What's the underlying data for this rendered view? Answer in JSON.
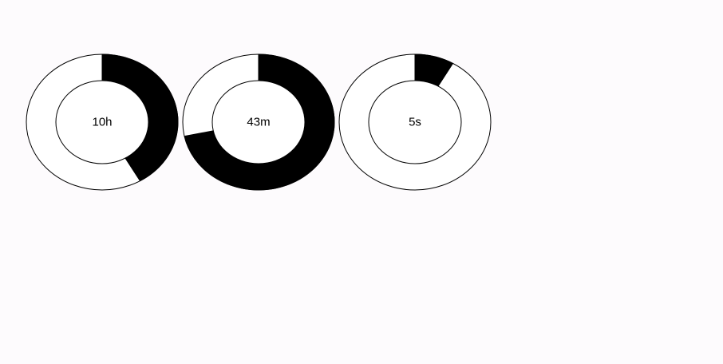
{
  "colors": {
    "background": "#fdfbfd",
    "filled": "#000000",
    "empty": "#ffffff",
    "stroke": "#000000"
  },
  "chart_data": {
    "type": "pie",
    "title": "",
    "gauges": [
      {
        "label": "10h",
        "value": 10,
        "max": 24
      },
      {
        "label": "43m",
        "value": 43,
        "max": 60
      },
      {
        "label": "5s",
        "value": 5,
        "max": 60
      }
    ]
  }
}
